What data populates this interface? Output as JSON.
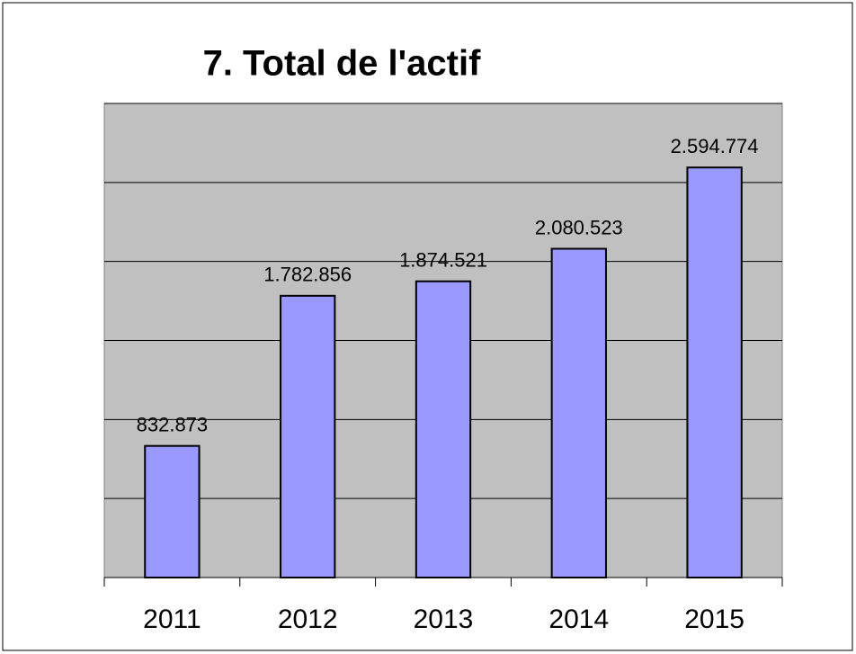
{
  "chart_data": {
    "type": "bar",
    "title": "7. Total de l'actif",
    "categories": [
      "2011",
      "2012",
      "2013",
      "2014",
      "2015"
    ],
    "values": [
      832873,
      1782856,
      1874521,
      2080523,
      2594774
    ],
    "value_labels": [
      "832.873",
      "1.782.856",
      "1.874.521",
      "2.080.523",
      "2.594.774"
    ],
    "color": "#9999ff",
    "ylim": [
      0,
      3000000
    ],
    "yticks": [
      0,
      500000,
      1000000,
      1500000,
      2000000,
      2500000,
      3000000
    ],
    "grid": true
  }
}
